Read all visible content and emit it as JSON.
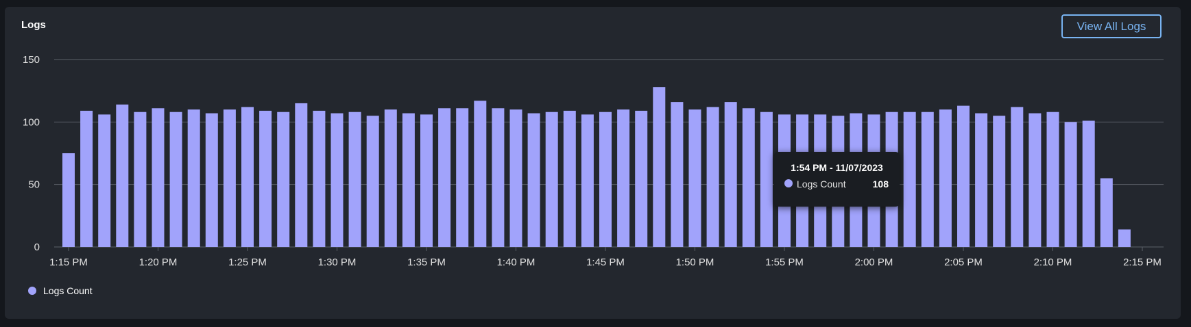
{
  "panel": {
    "title": "Logs",
    "view_all_label": "View All Logs"
  },
  "tooltip": {
    "title": "1:54 PM - 11/07/2023",
    "series_label": "Logs Count",
    "value": "108"
  },
  "legend": {
    "label": "Logs Count"
  },
  "colors": {
    "bar": "#a1a3fb",
    "grid": "#5b6068",
    "axis_text": "#e0e0e0",
    "accent": "#79b4f2"
  },
  "chart_data": {
    "type": "bar",
    "title": "Logs",
    "series": [
      {
        "name": "Logs Count",
        "values": [
          75,
          109,
          106,
          114,
          108,
          111,
          108,
          110,
          107,
          110,
          112,
          109,
          108,
          115,
          109,
          107,
          108,
          105,
          110,
          107,
          106,
          111,
          111,
          117,
          111,
          110,
          107,
          108,
          109,
          106,
          108,
          110,
          109,
          128,
          116,
          110,
          112,
          116,
          111,
          108,
          106,
          106,
          106,
          105,
          107,
          106,
          108,
          108,
          108,
          110,
          113,
          107,
          105,
          112,
          107,
          108,
          100,
          101,
          55,
          14
        ]
      }
    ],
    "x_start": "1:15 PM",
    "x_interval_minutes": 1,
    "x_ticks": [
      "1:15 PM",
      "1:20 PM",
      "1:25 PM",
      "1:30 PM",
      "1:35 PM",
      "1:40 PM",
      "1:45 PM",
      "1:50 PM",
      "1:55 PM",
      "2:00 PM",
      "2:05 PM",
      "2:10 PM",
      "2:15 PM"
    ],
    "y_ticks": [
      0,
      50,
      100,
      150
    ],
    "ylim": [
      0,
      150
    ],
    "grid": true,
    "legend_position": "bottom-left"
  }
}
